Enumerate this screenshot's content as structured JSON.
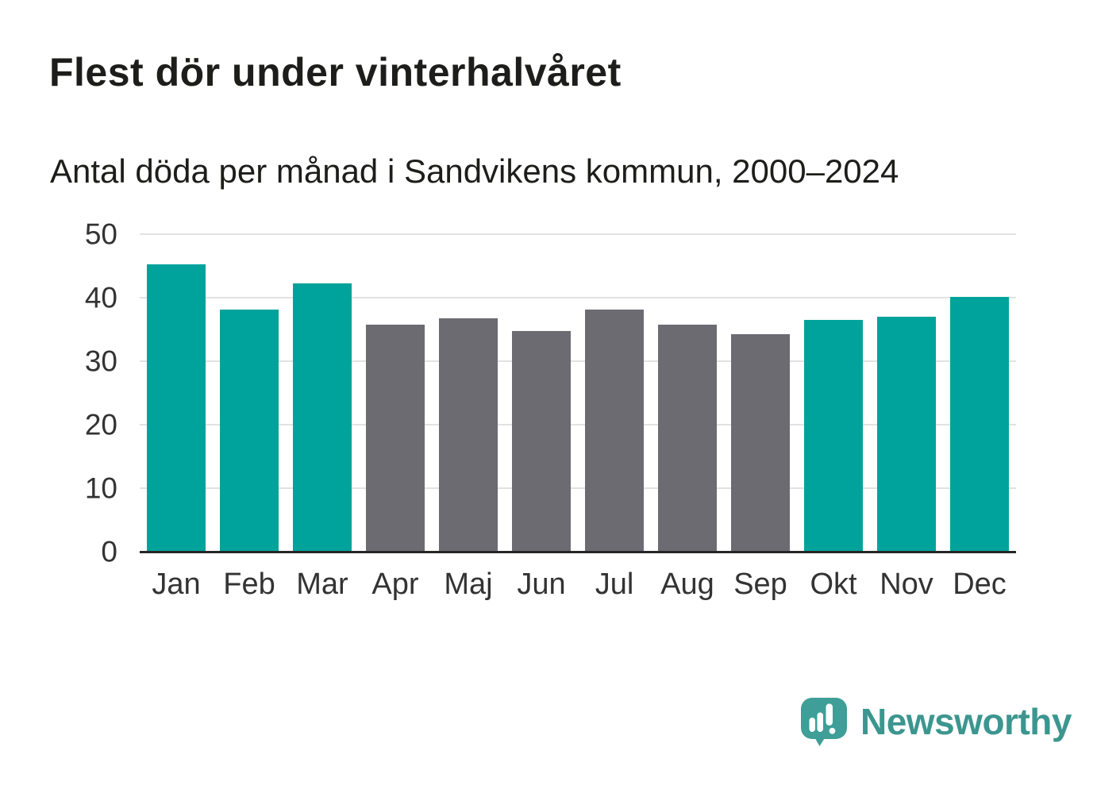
{
  "chart_data": {
    "type": "bar",
    "title": "Flest dör under vinterhalvåret",
    "subtitle": "Antal döda per månad i Sandvikens kommun, 2000–2024",
    "categories": [
      "Jan",
      "Feb",
      "Mar",
      "Apr",
      "Maj",
      "Jun",
      "Jul",
      "Aug",
      "Sep",
      "Okt",
      "Nov",
      "Dec"
    ],
    "values": [
      45.2,
      38.1,
      42.2,
      35.8,
      36.8,
      34.7,
      38.1,
      35.7,
      34.2,
      36.5,
      37.0,
      40.1
    ],
    "bar_color_keys": [
      "winter",
      "winter",
      "winter",
      "summer",
      "summer",
      "summer",
      "summer",
      "summer",
      "summer",
      "winter",
      "winter",
      "winter"
    ],
    "palette": {
      "winter": "#00a39b",
      "summer": "#6c6b72"
    },
    "xlabel": "",
    "ylabel": "",
    "ylim": [
      0,
      50
    ],
    "yticks": [
      0,
      10,
      20,
      30,
      40,
      50
    ],
    "grid": true,
    "legend": false,
    "gridline_color": "#e2e2e2",
    "axis_line_color": "#262626",
    "tick_label_color": "#333333",
    "title_color": "#1d1d1b"
  },
  "footer": {
    "brand": "Newsworthy",
    "brand_color": "#3c968f",
    "logo_icon": "speech-bubble-bar-chart-icon",
    "logo_bubble_color": "#3f9e97",
    "logo_marks_color": "#ffffff"
  }
}
